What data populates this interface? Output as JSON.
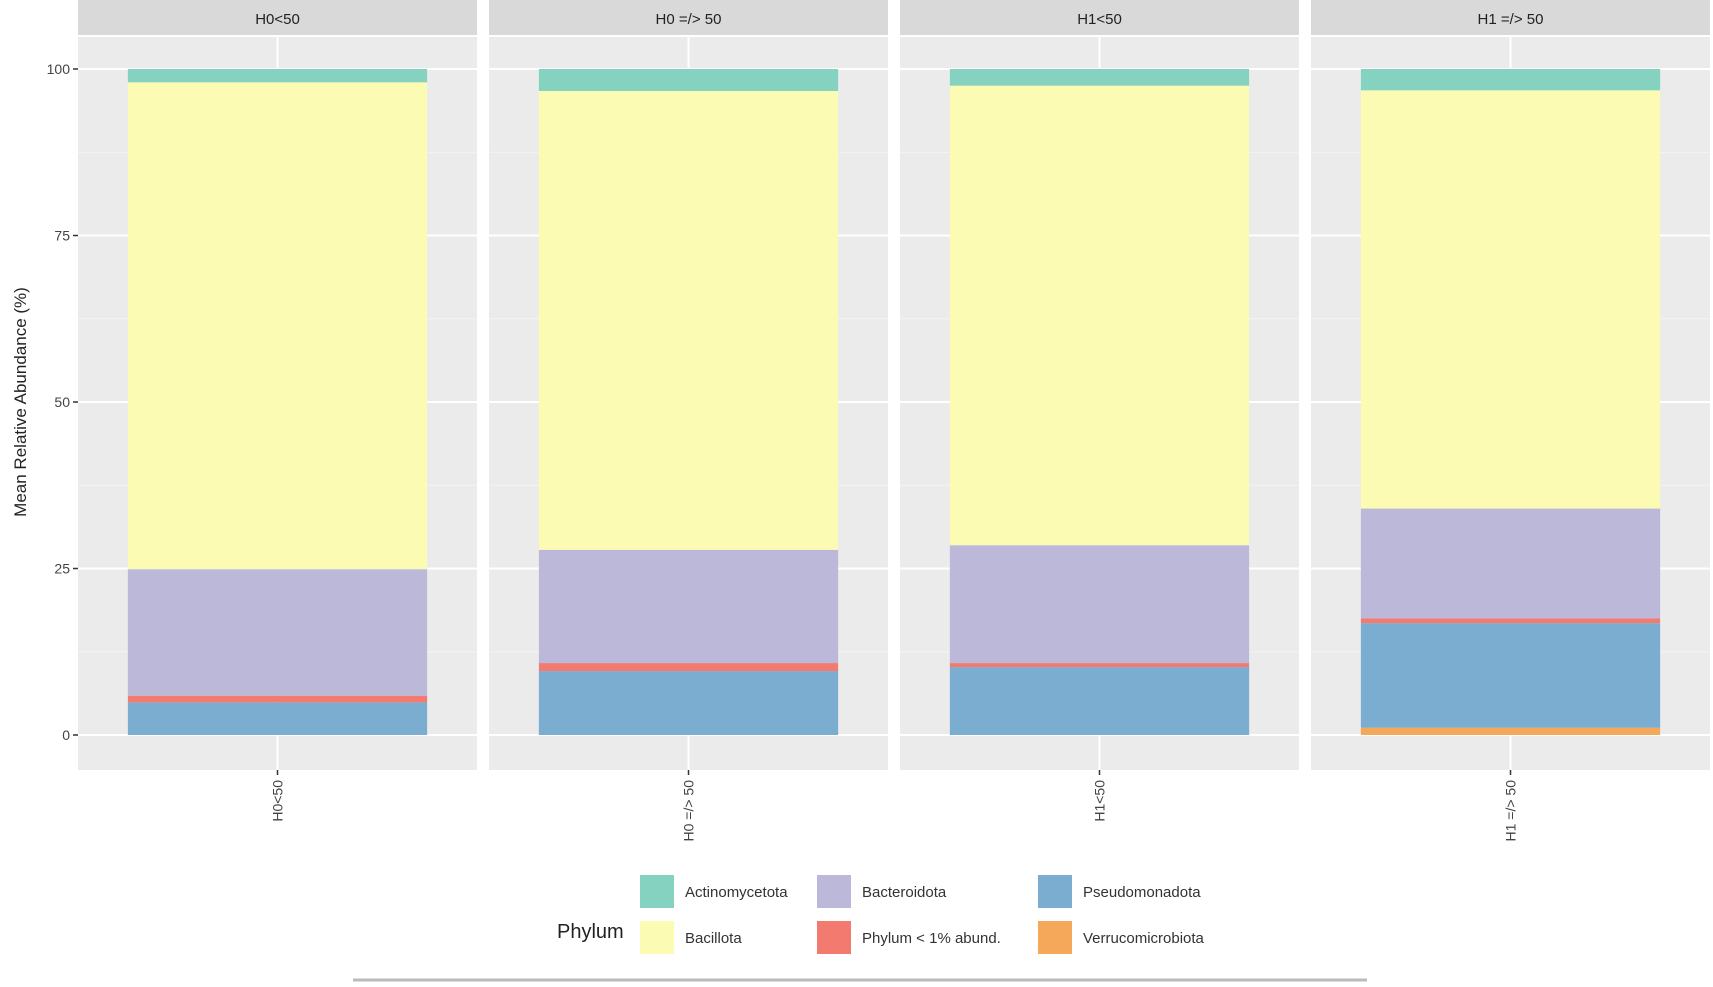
{
  "chart_data": {
    "type": "bar",
    "stacked": true,
    "faceted": true,
    "ylabel": "Mean Relative Abundance (%)",
    "xlabel": "",
    "ylim": [
      0,
      100
    ],
    "yticks": [
      "0",
      "25",
      "50",
      "75",
      "100"
    ],
    "ytick_values": [
      0,
      25,
      50,
      75,
      100
    ],
    "grid": true,
    "legend": {
      "title": "Phylum",
      "placement": "bottom"
    },
    "categories": [
      "H0<50",
      "H0 =/> 50",
      "H1<50",
      "H1 =/> 50"
    ],
    "series": [
      {
        "name": "Verrucomicrobiota",
        "color": "#f5a85a",
        "values": [
          0,
          0,
          0,
          1.1
        ]
      },
      {
        "name": "Pseudomonadota",
        "color": "#7aadd0",
        "values": [
          4.9,
          9.6,
          10.2,
          15.7
        ]
      },
      {
        "name": "Phylum < 1% abund.",
        "color": "#f27a6e",
        "values": [
          1.0,
          1.2,
          0.6,
          0.7
        ]
      },
      {
        "name": "Bacteroidota",
        "color": "#bcb8d9",
        "values": [
          19.0,
          17.0,
          17.7,
          16.5
        ]
      },
      {
        "name": "Bacillota",
        "color": "#fbfbb3",
        "values": [
          73.1,
          68.9,
          69.0,
          62.8
        ]
      },
      {
        "name": "Actinomycetota",
        "color": "#86d2c0",
        "values": [
          2.0,
          3.3,
          2.5,
          3.2
        ]
      }
    ],
    "legend_order": [
      "Actinomycetota",
      "Bacteroidota",
      "Pseudomonadota",
      "Bacillota",
      "Phylum < 1% abund.",
      "Verrucomicrobiota"
    ]
  }
}
